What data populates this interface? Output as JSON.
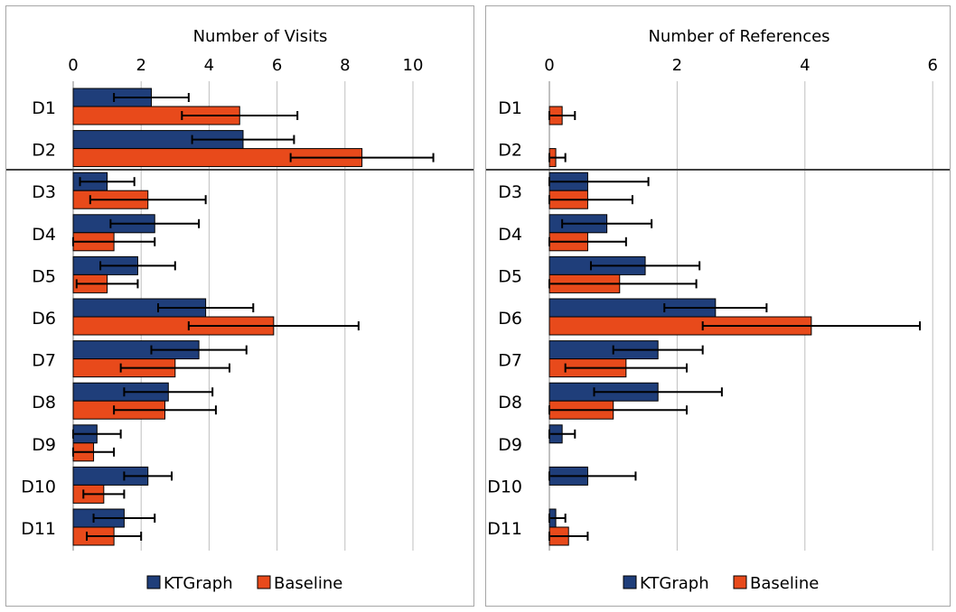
{
  "chart_data": [
    {
      "type": "bar",
      "orientation": "horizontal",
      "title": "Number of Visits",
      "categories": [
        "D1",
        "D2",
        "D3",
        "D4",
        "D5",
        "D6",
        "D7",
        "D8",
        "D9",
        "D10",
        "D11"
      ],
      "xlim": [
        0,
        12
      ],
      "ticks": [
        0,
        2,
        4,
        6,
        8,
        10
      ],
      "grid": true,
      "legend_position": "bottom",
      "separator_after_category": "D2",
      "series": [
        {
          "name": "KTGraph",
          "color": "#1f3e7a",
          "values": [
            2.3,
            5.0,
            1.0,
            2.4,
            1.9,
            3.9,
            3.7,
            2.8,
            0.7,
            2.2,
            1.5
          ],
          "errors": [
            1.1,
            1.5,
            0.8,
            1.3,
            1.1,
            1.4,
            1.4,
            1.3,
            0.7,
            0.7,
            0.9
          ]
        },
        {
          "name": "Baseline",
          "color": "#e84a1b",
          "values": [
            4.9,
            8.5,
            2.2,
            1.2,
            1.0,
            5.9,
            3.0,
            2.7,
            0.6,
            0.9,
            1.2
          ],
          "errors": [
            1.7,
            2.1,
            1.7,
            1.2,
            0.9,
            2.5,
            1.6,
            1.5,
            0.6,
            0.6,
            0.8
          ]
        }
      ]
    },
    {
      "type": "bar",
      "orientation": "horizontal",
      "title": "Number of References",
      "categories": [
        "D1",
        "D2",
        "D3",
        "D4",
        "D5",
        "D6",
        "D7",
        "D8",
        "D9",
        "D10",
        "D11"
      ],
      "xlim": [
        0,
        6.3
      ],
      "ticks": [
        0,
        2,
        4,
        6
      ],
      "grid": true,
      "legend_position": "bottom",
      "separator_after_category": "D2",
      "series": [
        {
          "name": "KTGraph",
          "color": "#1f3e7a",
          "values": [
            0,
            0,
            0.6,
            0.9,
            1.5,
            2.6,
            1.7,
            1.7,
            0.2,
            0.6,
            0.1
          ],
          "errors": [
            0,
            0,
            0.95,
            0.7,
            0.85,
            0.8,
            0.7,
            1.0,
            0.2,
            0.75,
            0.15
          ]
        },
        {
          "name": "Baseline",
          "color": "#e84a1b",
          "values": [
            0.2,
            0.1,
            0.6,
            0.6,
            1.1,
            4.1,
            1.2,
            1.0,
            0,
            0,
            0.3
          ],
          "errors": [
            0.2,
            0.15,
            0.7,
            0.6,
            1.2,
            1.7,
            0.95,
            1.15,
            0,
            0,
            0.3
          ]
        }
      ]
    }
  ]
}
